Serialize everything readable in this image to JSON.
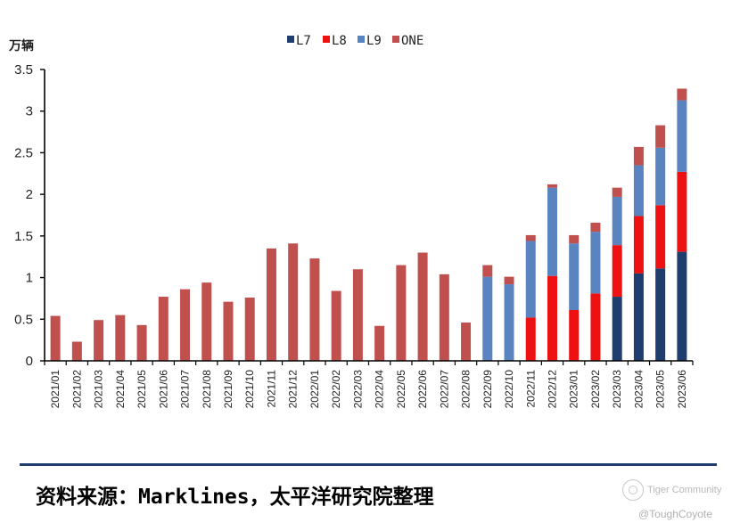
{
  "chart_data": {
    "type": "bar",
    "stacked": true,
    "y_unit": "万辆",
    "ylim": [
      0,
      3.5
    ],
    "yticks": [
      "0",
      "0.5",
      "1",
      "1.5",
      "2",
      "2.5",
      "3",
      "3.5"
    ],
    "grid": false,
    "legend_position": "top-center",
    "categories": [
      "2021/01",
      "2021/02",
      "2021/03",
      "2021/04",
      "2021/05",
      "2021/06",
      "2021/07",
      "2021/08",
      "2021/09",
      "2021/10",
      "2021/11",
      "2021/12",
      "2022/01",
      "2022/02",
      "2022/03",
      "2022/04",
      "2022/05",
      "2022/06",
      "2022/07",
      "2022/08",
      "2022/09",
      "2022/10",
      "2022/11",
      "2022/12",
      "2023/01",
      "2023/02",
      "2023/03",
      "2023/04",
      "2023/05",
      "2023/06"
    ],
    "series": [
      {
        "name": "L7",
        "color": "#1f3d6e",
        "values": [
          0,
          0,
          0,
          0,
          0,
          0,
          0,
          0,
          0,
          0,
          0,
          0,
          0,
          0,
          0,
          0,
          0,
          0,
          0,
          0,
          0,
          0,
          0,
          0,
          0,
          0,
          0.77,
          1.05,
          1.11,
          1.31
        ]
      },
      {
        "name": "L8",
        "color": "#ee1111",
        "values": [
          0,
          0,
          0,
          0,
          0,
          0,
          0,
          0,
          0,
          0,
          0,
          0,
          0,
          0,
          0,
          0,
          0,
          0,
          0,
          0,
          0,
          0,
          0.52,
          1.02,
          0.61,
          0.81,
          0.62,
          0.69,
          0.76,
          0.96
        ]
      },
      {
        "name": "L9",
        "color": "#5a84c0",
        "values": [
          0,
          0,
          0,
          0,
          0,
          0,
          0,
          0,
          0,
          0,
          0,
          0,
          0,
          0,
          0,
          0,
          0,
          0,
          0,
          0,
          1.01,
          0.92,
          0.92,
          1.06,
          0.8,
          0.74,
          0.58,
          0.61,
          0.69,
          0.86
        ]
      },
      {
        "name": "ONE",
        "color": "#c0504d",
        "values": [
          0.54,
          0.23,
          0.49,
          0.55,
          0.43,
          0.77,
          0.86,
          0.94,
          0.71,
          0.76,
          1.35,
          1.41,
          1.23,
          0.84,
          1.1,
          0.42,
          1.15,
          1.3,
          1.04,
          0.46,
          0.14,
          0.09,
          0.07,
          0.04,
          0.1,
          0.11,
          0.11,
          0.22,
          0.27,
          0.14
        ]
      }
    ]
  },
  "source_text": "资料来源：Marklines，太平洋研究院整理",
  "watermark": {
    "line1": "Tiger Community",
    "line2": "@ToughCoyote"
  }
}
